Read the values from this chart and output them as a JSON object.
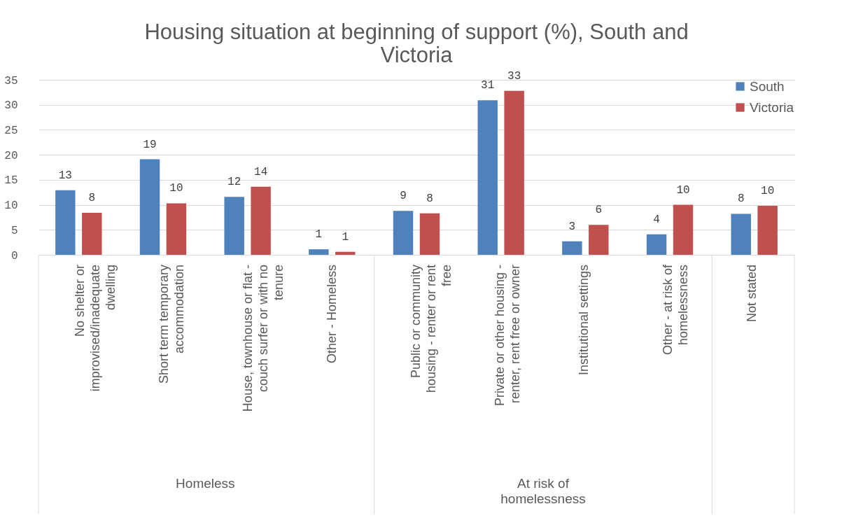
{
  "chart_data": {
    "type": "bar",
    "title": "Housing situation at beginning of support (%), South and Victoria",
    "categories": [
      "No shelter or improvised/inadequate dwelling",
      "Short term temporary accommodation",
      "House, townhouse or flat - couch surfer or with no tenure",
      "Other - Homeless",
      "Public or community housing - renter or rent free",
      "Private or other housing - renter, rent free or owner",
      "Institutional settings",
      "Other - at risk of homelessness",
      "Not stated"
    ],
    "series": [
      {
        "name": "South",
        "color": "#4f81bd",
        "values": [
          12.9,
          19.1,
          11.6,
          1.1,
          8.8,
          30.9,
          2.7,
          4.1,
          8.2
        ],
        "value_labels": [
          "13",
          "19",
          "12",
          "1",
          "9",
          "31",
          "3",
          "4",
          "8"
        ]
      },
      {
        "name": "Victoria",
        "color": "#c0504d",
        "values": [
          8.4,
          10.3,
          13.6,
          0.6,
          8.3,
          32.8,
          6.0,
          10.0,
          9.8
        ],
        "value_labels": [
          "8",
          "10",
          "14",
          "1",
          "8",
          "33",
          "6",
          "10",
          "10"
        ]
      }
    ],
    "ylim": [
      0,
      35
    ],
    "yticks": [
      0,
      5,
      10,
      15,
      20,
      25,
      30,
      35
    ],
    "grid": "y",
    "legend": "top right",
    "annotations": [
      "Homeless",
      "At risk of homelessness"
    ]
  }
}
